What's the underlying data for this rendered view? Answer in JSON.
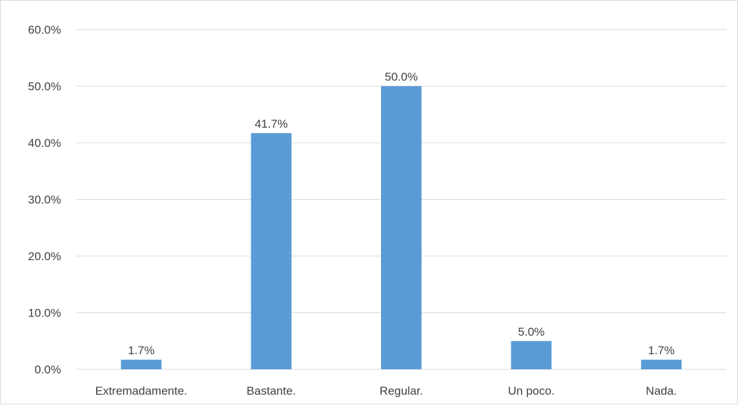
{
  "chart_data": {
    "type": "bar",
    "title": "",
    "xlabel": "",
    "ylabel": "",
    "categories": [
      "Extremadamente.",
      "Bastante.",
      "Regular.",
      "Un poco.",
      "Nada."
    ],
    "values": [
      1.7,
      41.7,
      50.0,
      5.0,
      1.7
    ],
    "data_labels": [
      "1.7%",
      "41.7%",
      "50.0%",
      "5.0%",
      "1.7%"
    ],
    "ylim": [
      0,
      60
    ],
    "yticks": [
      0,
      10,
      20,
      30,
      40,
      50,
      60
    ],
    "ytick_labels": [
      "0.0%",
      "10.0%",
      "20.0%",
      "30.0%",
      "40.0%",
      "50.0%",
      "60.0%"
    ],
    "grid": true,
    "legend": "none",
    "bar_color": "#5b9bd5",
    "grid_color": "#d9d9d9"
  }
}
